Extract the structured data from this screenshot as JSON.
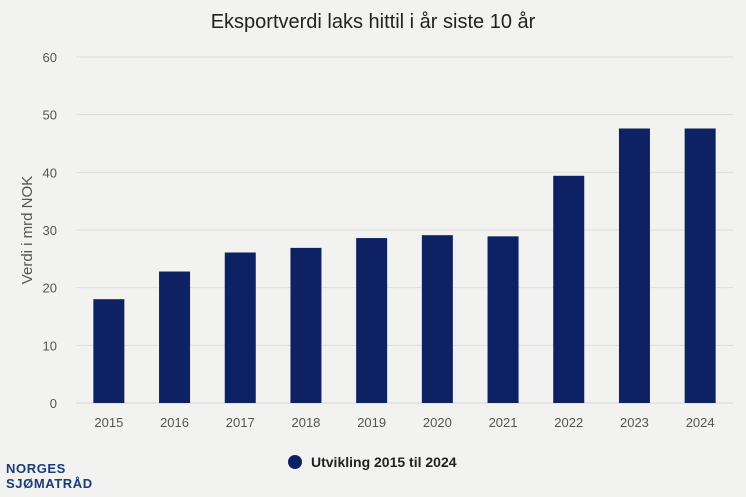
{
  "chart_data": {
    "type": "bar",
    "title": "Eksportverdi laks hittil i år siste 10 år",
    "xlabel": "",
    "ylabel": "Verdi i mrd NOK",
    "categories": [
      "2015",
      "2016",
      "2017",
      "2018",
      "2019",
      "2020",
      "2021",
      "2022",
      "2023",
      "2024"
    ],
    "series": [
      {
        "name": "Utvikling 2015 til 2024",
        "values": [
          18.0,
          22.8,
          26.1,
          26.9,
          28.6,
          29.1,
          28.9,
          39.4,
          47.6,
          47.6
        ],
        "color": "#0d2163"
      }
    ],
    "ylim": [
      0,
      60
    ],
    "yticks": [
      "0",
      "10",
      "20",
      "30",
      "40",
      "50",
      "60"
    ],
    "grid": true,
    "legend_position": "bottom-center"
  },
  "logo": {
    "line1": "NORGES",
    "line2": "SJØMATRÅD",
    "color": "#1a3a7a"
  },
  "colors": {
    "background": "#f2f2f0",
    "grid": "#dcdcdc",
    "text": "#222222",
    "axis_text": "#555555"
  }
}
